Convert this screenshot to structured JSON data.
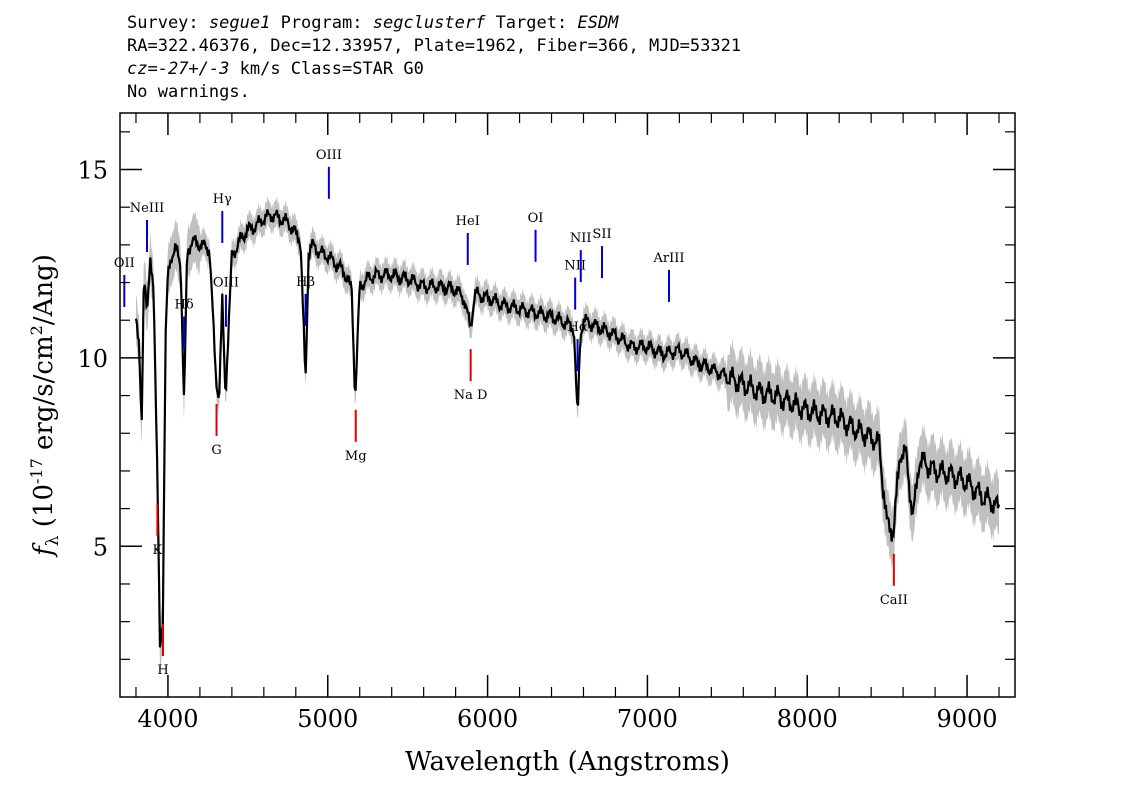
{
  "header": {
    "survey_label": "Survey:",
    "survey": "segue1",
    "program_label": "Program:",
    "program": "segclusterf",
    "target_label": "Target:",
    "target": "ESDM",
    "line2": "RA=322.46376, Dec=12.33957, Plate=1962, Fiber=366, MJD=53321",
    "cz_label": "cz=",
    "cz_value": "-27+/-3",
    "cz_rest": "km/s Class=STAR G0",
    "line4": "No warnings."
  },
  "chart_data": {
    "type": "line",
    "xlabel": "Wavelength (Angstroms)",
    "ylabel": "f_λ (10^-17 erg/s/cm^2/Ang)",
    "xlim": [
      3700,
      9300
    ],
    "ylim": [
      1,
      16.5
    ],
    "x_ticks": [
      4000,
      5000,
      6000,
      7000,
      8000,
      9000
    ],
    "y_ticks": [
      5,
      10,
      15
    ],
    "grid": false,
    "colors": {
      "flux": "#000000",
      "error": "#c0c0c0",
      "emission": "#0000cc",
      "absorption": "#dd0000",
      "axis": "#000000"
    },
    "series": [
      {
        "x": [
          3800,
          3820,
          3835,
          3850,
          3870,
          3890,
          3910,
          3935,
          3950,
          3968,
          3985,
          4000,
          4020,
          4050,
          4080,
          4101,
          4120,
          4150,
          4200,
          4260,
          4300,
          4320,
          4340,
          4360,
          4400,
          4450,
          4500,
          4550,
          4600,
          4650,
          4700,
          4750,
          4800,
          4830,
          4861,
          4880,
          4900,
          4950,
          5000,
          5050,
          5100,
          5150,
          5172,
          5200,
          5250,
          5300,
          5400,
          5500,
          5600,
          5700,
          5800,
          5850,
          5893,
          5920,
          6000,
          6100,
          6200,
          6300,
          6400,
          6500,
          6540,
          6563,
          6580,
          6600,
          6700,
          6800,
          6900,
          7000,
          7100,
          7200,
          7300,
          7400,
          7500,
          7600,
          7700,
          7800,
          7900,
          8000,
          8100,
          8200,
          8300,
          8400,
          8450,
          8498,
          8542,
          8580,
          8620,
          8662,
          8700,
          8800,
          8900,
          9000,
          9100,
          9150,
          9200
        ],
        "y": [
          11.2,
          10.2,
          8.0,
          12.4,
          11.2,
          12.5,
          12.0,
          6.5,
          2.3,
          3.1,
          10.5,
          12.2,
          12.7,
          12.9,
          12.5,
          8.7,
          12.8,
          13.1,
          13.0,
          12.9,
          9.5,
          8.9,
          11.5,
          9.0,
          12.7,
          13.1,
          13.4,
          13.5,
          13.7,
          13.8,
          13.7,
          13.6,
          13.3,
          13.1,
          9.3,
          12.8,
          13.0,
          12.8,
          12.7,
          12.5,
          12.3,
          11.8,
          8.9,
          11.9,
          12.1,
          12.2,
          12.2,
          12.1,
          11.9,
          11.9,
          11.8,
          11.6,
          10.8,
          11.7,
          11.6,
          11.4,
          11.3,
          11.2,
          11.1,
          10.9,
          10.8,
          8.3,
          10.6,
          11.0,
          10.8,
          10.6,
          10.3,
          10.3,
          10.1,
          10.2,
          9.9,
          9.7,
          9.5,
          9.3,
          9.1,
          9.0,
          8.8,
          8.6,
          8.5,
          8.4,
          8.1,
          7.9,
          7.7,
          5.6,
          5.4,
          7.5,
          7.4,
          5.7,
          7.3,
          7.0,
          6.9,
          6.7,
          6.3,
          6.2,
          6.0
        ]
      }
    ],
    "emission_lines": [
      {
        "label": "OII",
        "wave": 3727
      },
      {
        "label": "NeIII",
        "wave": 3869
      },
      {
        "label": "Hδ",
        "wave": 4101
      },
      {
        "label": "Hγ",
        "wave": 4340
      },
      {
        "label": "OIII",
        "wave": 4363
      },
      {
        "label": "Hβ",
        "wave": 4861
      },
      {
        "label": "OIII",
        "wave": 5007
      },
      {
        "label": "HeI",
        "wave": 5876
      },
      {
        "label": "OI",
        "wave": 6300
      },
      {
        "label": "NII",
        "wave": 6548
      },
      {
        "label": "Hα",
        "wave": 6563
      },
      {
        "label": "NII",
        "wave": 6583
      },
      {
        "label": "SII",
        "wave": 6716
      },
      {
        "label": "ArIII",
        "wave": 7135
      }
    ],
    "absorption_lines": [
      {
        "label": "K",
        "wave": 3934
      },
      {
        "label": "H",
        "wave": 3969
      },
      {
        "label": "G",
        "wave": 4304
      },
      {
        "label": "Mg",
        "wave": 5175
      },
      {
        "label": "Na D",
        "wave": 5894
      },
      {
        "label": "CaII",
        "wave": 8542
      }
    ]
  }
}
